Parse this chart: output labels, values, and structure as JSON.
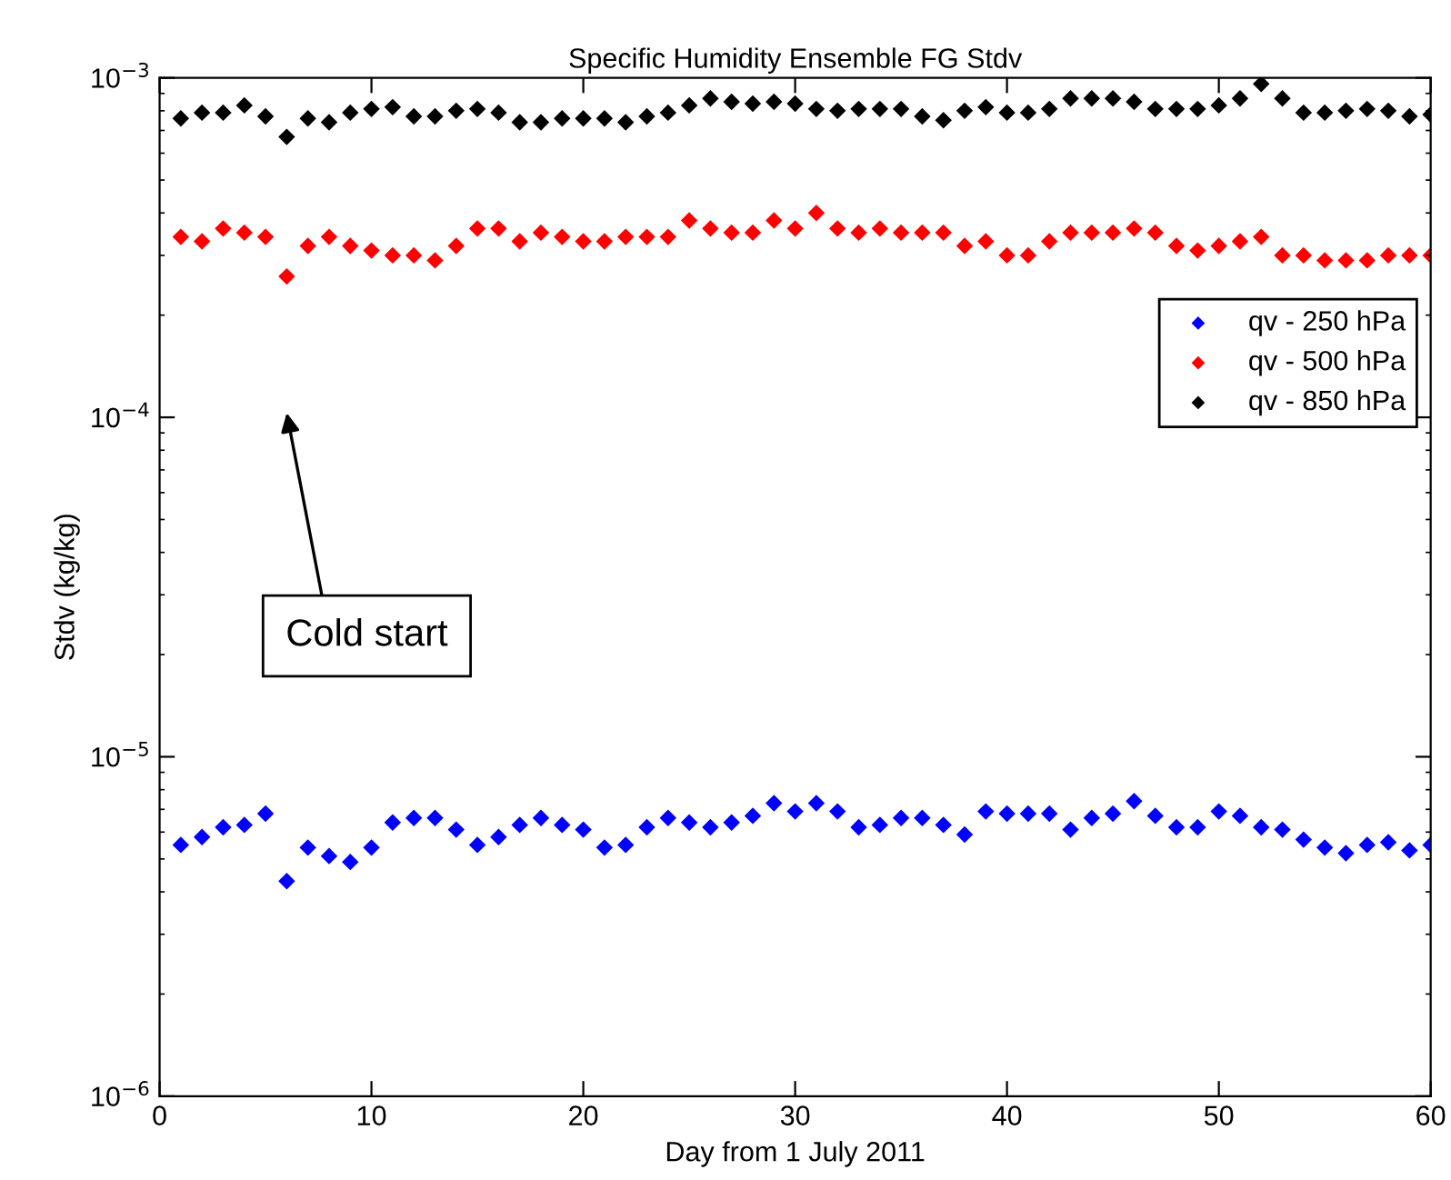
{
  "chart_data": {
    "type": "scatter",
    "title": "Specific Humidity Ensemble FG Stdv",
    "xlabel": "Day from 1 July 2011",
    "ylabel": "Stdv (kg/kg)",
    "x": [
      1,
      2,
      3,
      4,
      5,
      6,
      7,
      8,
      9,
      10,
      11,
      12,
      13,
      14,
      15,
      16,
      17,
      18,
      19,
      20,
      21,
      22,
      23,
      24,
      25,
      26,
      27,
      28,
      29,
      30,
      31,
      32,
      33,
      34,
      35,
      36,
      37,
      38,
      39,
      40,
      41,
      42,
      43,
      44,
      45,
      46,
      47,
      48,
      49,
      50,
      51,
      52,
      53,
      54,
      55,
      56,
      57,
      58,
      59,
      60
    ],
    "series": [
      {
        "name": "qv - 250 hPa",
        "color": "#0000ff",
        "values": [
          5.5e-06,
          5.8e-06,
          6.2e-06,
          6.3e-06,
          6.8e-06,
          4.3e-06,
          5.4e-06,
          5.1e-06,
          4.9e-06,
          5.4e-06,
          6.4e-06,
          6.6e-06,
          6.6e-06,
          6.1e-06,
          5.5e-06,
          5.8e-06,
          6.3e-06,
          6.6e-06,
          6.3e-06,
          6.1e-06,
          5.4e-06,
          5.5e-06,
          6.2e-06,
          6.6e-06,
          6.4e-06,
          6.2e-06,
          6.4e-06,
          6.7e-06,
          7.3e-06,
          6.9e-06,
          7.3e-06,
          6.9e-06,
          6.2e-06,
          6.3e-06,
          6.6e-06,
          6.6e-06,
          6.3e-06,
          5.9e-06,
          6.9e-06,
          6.8e-06,
          6.8e-06,
          6.8e-06,
          6.1e-06,
          6.6e-06,
          6.8e-06,
          7.4e-06,
          6.7e-06,
          6.2e-06,
          6.2e-06,
          6.9e-06,
          6.7e-06,
          6.2e-06,
          6.1e-06,
          5.7e-06,
          5.4e-06,
          5.2e-06,
          5.5e-06,
          5.6e-06,
          5.3e-06,
          5.5e-06
        ]
      },
      {
        "name": "qv - 500 hPa",
        "color": "#ff0000",
        "values": [
          0.00034,
          0.00033,
          0.00036,
          0.00035,
          0.00034,
          0.00026,
          0.00032,
          0.00034,
          0.00032,
          0.00031,
          0.0003,
          0.0003,
          0.00029,
          0.00032,
          0.00036,
          0.00036,
          0.00033,
          0.00035,
          0.00034,
          0.00033,
          0.00033,
          0.00034,
          0.00034,
          0.00034,
          0.00038,
          0.00036,
          0.00035,
          0.00035,
          0.00038,
          0.00036,
          0.0004,
          0.00036,
          0.00035,
          0.00036,
          0.00035,
          0.00035,
          0.00035,
          0.00032,
          0.00033,
          0.0003,
          0.0003,
          0.00033,
          0.00035,
          0.00035,
          0.00035,
          0.00036,
          0.00035,
          0.00032,
          0.00031,
          0.00032,
          0.00033,
          0.00034,
          0.0003,
          0.0003,
          0.00029,
          0.00029,
          0.00029,
          0.0003,
          0.0003,
          0.0003
        ]
      },
      {
        "name": "qv - 850 hPa",
        "color": "#000000",
        "values": [
          0.00076,
          0.00079,
          0.00079,
          0.00083,
          0.00077,
          0.00067,
          0.00076,
          0.00074,
          0.00079,
          0.00081,
          0.00082,
          0.00077,
          0.00077,
          0.0008,
          0.00081,
          0.00079,
          0.00074,
          0.00074,
          0.00076,
          0.00076,
          0.00076,
          0.00074,
          0.00077,
          0.00079,
          0.00083,
          0.00087,
          0.00085,
          0.00084,
          0.00085,
          0.00084,
          0.00081,
          0.0008,
          0.00081,
          0.00081,
          0.00081,
          0.00077,
          0.00075,
          0.0008,
          0.00082,
          0.00079,
          0.00079,
          0.00081,
          0.00087,
          0.00087,
          0.00087,
          0.00085,
          0.00081,
          0.00081,
          0.00081,
          0.00083,
          0.00087,
          0.00096,
          0.00087,
          0.00079,
          0.00079,
          0.0008,
          0.00081,
          0.0008,
          0.00077,
          0.00078
        ]
      }
    ],
    "xlim": [
      0,
      60
    ],
    "xticks": [
      0,
      10,
      20,
      30,
      40,
      50,
      60
    ],
    "log": "y",
    "ylim": [
      1e-06,
      0.001
    ],
    "yticks": [
      {
        "value": 1e-06,
        "label": "10$^{−6}$"
      },
      {
        "value": 1e-05,
        "label": "10$^{−5}$"
      },
      {
        "value": 0.0001,
        "label": "10$^{−4}$"
      },
      {
        "value": 0.001,
        "label": "10$^{−3}$"
      }
    ],
    "marker": "diamond",
    "legend": "right",
    "grid": false,
    "annotations": [
      "Cold start"
    ]
  }
}
